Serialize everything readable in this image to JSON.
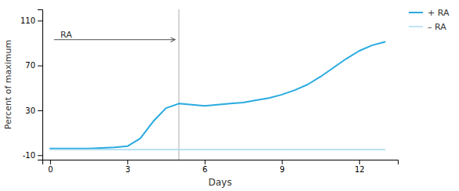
{
  "chart_data": {
    "type": "line",
    "series": [
      {
        "name": "+ RA",
        "color": "#29aae1",
        "x": [
          0,
          0.5,
          1,
          1.5,
          2,
          2.5,
          3,
          3.5,
          4,
          4.5,
          5,
          5.5,
          6,
          6.5,
          7,
          7.5,
          8,
          8.5,
          9,
          9.5,
          10,
          10.5,
          11,
          11.5,
          12,
          12.5,
          13
        ],
        "values": [
          -4,
          -4,
          -4,
          -4,
          -3.5,
          -3,
          -2,
          5,
          20,
          32,
          36,
          35,
          34,
          35,
          36,
          37,
          39,
          41,
          44,
          48,
          53,
          60,
          68,
          76,
          83,
          88,
          91
        ]
      },
      {
        "name": "– RA",
        "color": "#b0ddf0",
        "x": [
          0,
          13
        ],
        "values": [
          -5,
          -5
        ]
      }
    ],
    "x_label": "Days",
    "y_label": "Percent of maximum",
    "xlim": [
      -0.3,
      13.5
    ],
    "ylim": [
      -14,
      120
    ],
    "xticks": [
      0,
      3,
      6,
      9,
      12
    ],
    "yticks": [
      -10,
      30,
      70,
      110
    ],
    "grid": false,
    "legend": "upper right",
    "annotations": [
      {
        "type": "vline",
        "x": 5,
        "color": "#aaaaaa"
      },
      {
        "type": "arrow",
        "x": [
          0.15,
          4.85
        ],
        "y": 93,
        "color": "#555555"
      },
      {
        "type": "text",
        "text": "RA",
        "x": 0.4,
        "y": 95
      }
    ]
  }
}
